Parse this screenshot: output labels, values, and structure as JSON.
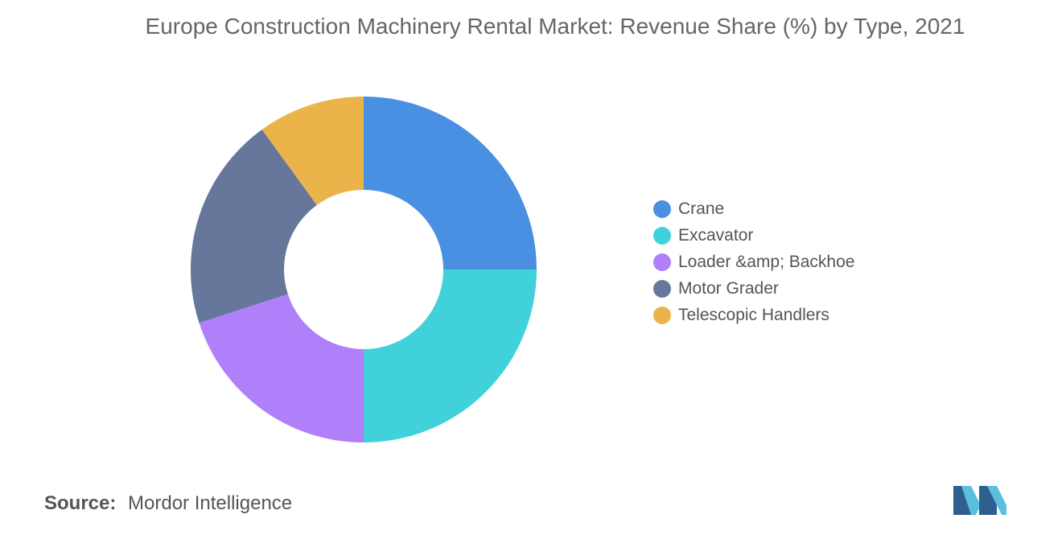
{
  "title": "Europe Construction Machinery Rental Market: Revenue Share (%) by Type, 2021",
  "chart_data": {
    "type": "pie",
    "variant": "donut",
    "title": "Europe Construction Machinery Rental Market: Revenue Share (%) by Type, 2021",
    "categories": [
      "Crane",
      "Excavator",
      "Loader &amp; Backhoe",
      "Motor Grader",
      "Telescopic Handlers"
    ],
    "values": [
      25,
      25,
      20,
      20,
      10
    ],
    "colors": [
      "#4a90e2",
      "#41d1db",
      "#b080fb",
      "#66779b",
      "#ebb44a"
    ],
    "legend": "right"
  },
  "source": {
    "label": "Source:",
    "value": "Mordor Intelligence"
  },
  "logo_icon": "mordor-intelligence-logo"
}
